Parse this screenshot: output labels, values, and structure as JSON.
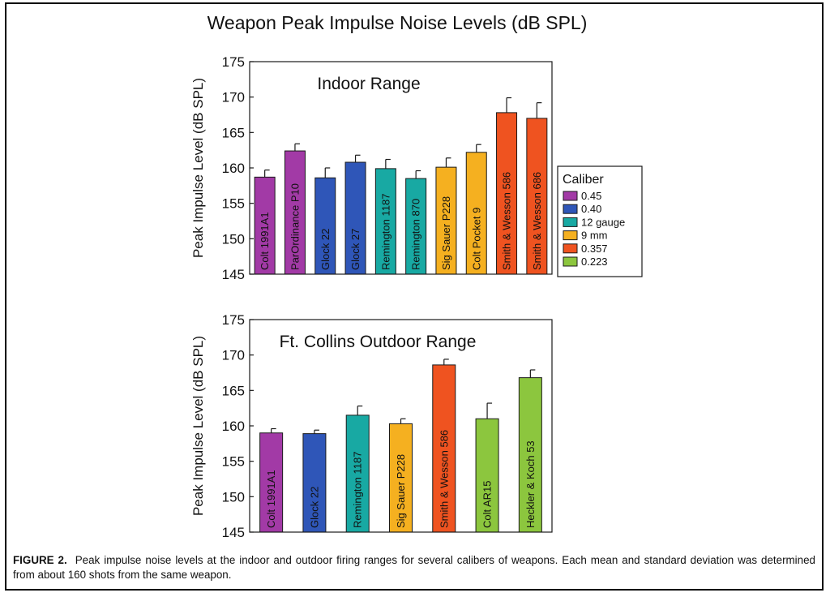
{
  "figure_title": "Weapon Peak Impulse Noise Levels (dB SPL)",
  "caption": {
    "lead": "FIGURE 2.",
    "text": "Peak impulse noise levels at the indoor and outdoor firing ranges for several calibers of weapons. Each mean and standard deviation was determined from about 160 shots from the same weapon."
  },
  "legend": {
    "title": "Caliber",
    "items": [
      {
        "label": "0.45",
        "color": "#a23aa6"
      },
      {
        "label": "0.40",
        "color": "#2f56b8"
      },
      {
        "label": "12 gauge",
        "color": "#18a9a3"
      },
      {
        "label": "9 mm",
        "color": "#f5b020"
      },
      {
        "label": "0.357",
        "color": "#ef5320"
      },
      {
        "label": "0.223",
        "color": "#8cc63e"
      }
    ]
  },
  "chart_data": [
    {
      "type": "bar",
      "title": "Indoor Range",
      "ylabel": "Peak Impulse Level (dB SPL)",
      "ylim": [
        145,
        175
      ],
      "yticks": [
        145,
        150,
        155,
        160,
        165,
        170,
        175
      ],
      "categories": [
        "Colt 1991A1",
        "ParOrdinance P10",
        "Glock 22",
        "Glock 27",
        "Remington 1187",
        "Remington 870",
        "Sig Sauer P228",
        "Colt Pocket 9",
        "Smith & Wesson 586",
        "Smith & Wesson 686"
      ],
      "calibers": [
        "0.45",
        "0.45",
        "0.40",
        "0.40",
        "12 gauge",
        "12 gauge",
        "9 mm",
        "9 mm",
        "0.357",
        "0.357"
      ],
      "values": [
        158.7,
        162.4,
        158.6,
        160.8,
        159.9,
        158.5,
        160.1,
        162.2,
        167.8,
        167.0
      ],
      "errors": [
        1.0,
        1.0,
        1.4,
        1.0,
        1.3,
        1.1,
        1.3,
        1.1,
        2.1,
        2.2
      ]
    },
    {
      "type": "bar",
      "title": "Ft. Collins Outdoor Range",
      "ylabel": "Peak Impulse Level (dB SPL)",
      "ylim": [
        145,
        175
      ],
      "yticks": [
        145,
        150,
        155,
        160,
        165,
        170,
        175
      ],
      "categories": [
        "Colt 1991A1",
        "Glock 22",
        "Remington 1187",
        "Sig Sauer P228",
        "Smith & Wesson 586",
        "Colt AR15",
        "Heckler & Koch 53"
      ],
      "calibers": [
        "0.45",
        "0.40",
        "12 gauge",
        "9 mm",
        "0.357",
        "0.223",
        "0.223"
      ],
      "values": [
        159.0,
        158.9,
        161.5,
        160.3,
        168.6,
        161.0,
        166.8
      ],
      "errors": [
        0.6,
        0.5,
        1.3,
        0.7,
        0.8,
        2.2,
        1.1
      ]
    }
  ]
}
